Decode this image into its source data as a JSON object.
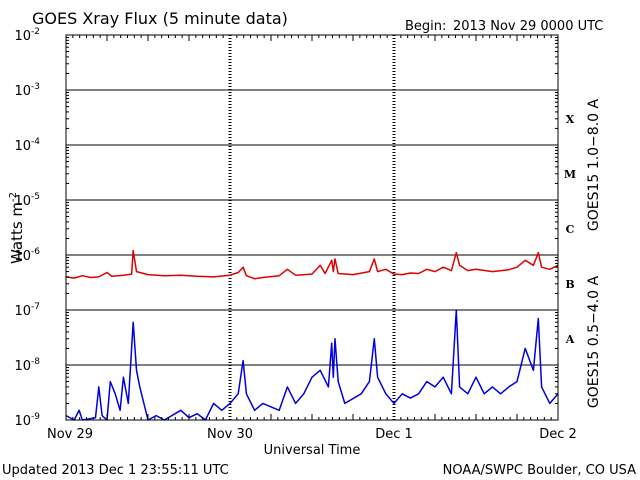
{
  "header": {
    "title": "GOES Xray Flux (5 minute data)",
    "begin_label": "Begin:",
    "begin_value": "2013 Nov 29 0000 UTC"
  },
  "footer": {
    "updated": "Updated 2013 Dec  1 23:55:11 UTC",
    "credit": "NOAA/SWPC Boulder, CO USA"
  },
  "chart_data": {
    "type": "line",
    "title": "GOES Xray Flux (5 minute data)",
    "xlabel": "Universal Time",
    "ylabel": "Watts m",
    "ylabel_sup": "-2",
    "yscale": "log",
    "ylim": [
      1e-09,
      0.01
    ],
    "xlim_days": [
      0,
      3
    ],
    "x_ticks": [
      {
        "day": 0,
        "label": "Nov 29"
      },
      {
        "day": 1,
        "label": "Nov 30"
      },
      {
        "day": 2,
        "label": "Dec 1"
      },
      {
        "day": 3,
        "label": "Dec 2"
      }
    ],
    "y_ticks": [
      {
        "base": "10",
        "exp": "-2",
        "value": 0.01
      },
      {
        "base": "10",
        "exp": "-3",
        "value": 0.001
      },
      {
        "base": "10",
        "exp": "-4",
        "value": 0.0001
      },
      {
        "base": "10",
        "exp": "-5",
        "value": 1e-05
      },
      {
        "base": "10",
        "exp": "-6",
        "value": 1e-06
      },
      {
        "base": "10",
        "exp": "-7",
        "value": 1e-07
      },
      {
        "base": "10",
        "exp": "-8",
        "value": 1e-08
      },
      {
        "base": "10",
        "exp": "-9",
        "value": 1e-09
      }
    ],
    "flare_classes": [
      {
        "label": "X",
        "value": 0.0003
      },
      {
        "label": "M",
        "value": 3e-05
      },
      {
        "label": "C",
        "value": 3e-06
      },
      {
        "label": "B",
        "value": 3e-07
      },
      {
        "label": "A",
        "value": 3e-08
      }
    ],
    "grid": true,
    "series": [
      {
        "name": "GOES15 1.0−8.0 A",
        "color": "#e00000",
        "points": [
          [
            0.0,
            4e-07
          ],
          [
            0.05,
            3.8e-07
          ],
          [
            0.1,
            4.2e-07
          ],
          [
            0.15,
            3.9e-07
          ],
          [
            0.2,
            4e-07
          ],
          [
            0.25,
            4.8e-07
          ],
          [
            0.28,
            4.1e-07
          ],
          [
            0.35,
            4.3e-07
          ],
          [
            0.4,
            4.5e-07
          ],
          [
            0.41,
            1.2e-06
          ],
          [
            0.43,
            5e-07
          ],
          [
            0.5,
            4.4e-07
          ],
          [
            0.6,
            4.2e-07
          ],
          [
            0.7,
            4.3e-07
          ],
          [
            0.8,
            4.1e-07
          ],
          [
            0.9,
            4e-07
          ],
          [
            1.0,
            4.3e-07
          ],
          [
            1.05,
            4.8e-07
          ],
          [
            1.08,
            6e-07
          ],
          [
            1.1,
            4.2e-07
          ],
          [
            1.15,
            3.7e-07
          ],
          [
            1.2,
            3.9e-07
          ],
          [
            1.3,
            4.2e-07
          ],
          [
            1.35,
            5.5e-07
          ],
          [
            1.4,
            4.3e-07
          ],
          [
            1.5,
            4.5e-07
          ],
          [
            1.55,
            6.5e-07
          ],
          [
            1.58,
            4.6e-07
          ],
          [
            1.62,
            8e-07
          ],
          [
            1.63,
            5e-07
          ],
          [
            1.64,
            8.5e-07
          ],
          [
            1.66,
            4.6e-07
          ],
          [
            1.75,
            4.4e-07
          ],
          [
            1.85,
            5e-07
          ],
          [
            1.88,
            8.5e-07
          ],
          [
            1.9,
            5e-07
          ],
          [
            1.95,
            5.5e-07
          ],
          [
            2.0,
            4.5e-07
          ],
          [
            2.05,
            4.4e-07
          ],
          [
            2.1,
            4.7e-07
          ],
          [
            2.15,
            4.6e-07
          ],
          [
            2.2,
            5.5e-07
          ],
          [
            2.25,
            5e-07
          ],
          [
            2.3,
            6e-07
          ],
          [
            2.35,
            5.2e-07
          ],
          [
            2.38,
            1.1e-06
          ],
          [
            2.4,
            6.5e-07
          ],
          [
            2.45,
            5.2e-07
          ],
          [
            2.5,
            5.5e-07
          ],
          [
            2.6,
            5e-07
          ],
          [
            2.7,
            5.4e-07
          ],
          [
            2.75,
            6e-07
          ],
          [
            2.8,
            8e-07
          ],
          [
            2.85,
            6.5e-07
          ],
          [
            2.88,
            1.1e-06
          ],
          [
            2.9,
            6e-07
          ],
          [
            2.95,
            5.5e-07
          ],
          [
            3.0,
            6.5e-07
          ]
        ]
      },
      {
        "name": "GOES15 0.5−4.0 A",
        "color": "#0000e0",
        "points": [
          [
            0.0,
            1.2e-09
          ],
          [
            0.05,
            1e-09
          ],
          [
            0.08,
            1.5e-09
          ],
          [
            0.1,
            1e-09
          ],
          [
            0.18,
            1.1e-09
          ],
          [
            0.2,
            4e-09
          ],
          [
            0.22,
            1.2e-09
          ],
          [
            0.25,
            1e-09
          ],
          [
            0.27,
            5e-09
          ],
          [
            0.3,
            3e-09
          ],
          [
            0.33,
            1.5e-09
          ],
          [
            0.35,
            6e-09
          ],
          [
            0.38,
            2e-09
          ],
          [
            0.41,
            6e-08
          ],
          [
            0.43,
            8e-09
          ],
          [
            0.45,
            4e-09
          ],
          [
            0.5,
            1e-09
          ],
          [
            0.55,
            1.2e-09
          ],
          [
            0.6,
            1e-09
          ],
          [
            0.7,
            1.5e-09
          ],
          [
            0.75,
            1.1e-09
          ],
          [
            0.8,
            1.3e-09
          ],
          [
            0.85,
            1e-09
          ],
          [
            0.9,
            2e-09
          ],
          [
            0.95,
            1.5e-09
          ],
          [
            1.0,
            2e-09
          ],
          [
            1.05,
            3e-09
          ],
          [
            1.08,
            1.2e-08
          ],
          [
            1.1,
            3e-09
          ],
          [
            1.15,
            1.5e-09
          ],
          [
            1.2,
            2e-09
          ],
          [
            1.3,
            1.5e-09
          ],
          [
            1.35,
            4e-09
          ],
          [
            1.4,
            2e-09
          ],
          [
            1.45,
            3e-09
          ],
          [
            1.5,
            6e-09
          ],
          [
            1.55,
            8e-09
          ],
          [
            1.6,
            4e-09
          ],
          [
            1.62,
            2.5e-08
          ],
          [
            1.63,
            6e-09
          ],
          [
            1.64,
            3e-08
          ],
          [
            1.66,
            5e-09
          ],
          [
            1.7,
            2e-09
          ],
          [
            1.8,
            3e-09
          ],
          [
            1.85,
            5e-09
          ],
          [
            1.88,
            3e-08
          ],
          [
            1.9,
            6e-09
          ],
          [
            1.95,
            3e-09
          ],
          [
            2.0,
            2e-09
          ],
          [
            2.05,
            3e-09
          ],
          [
            2.1,
            2.5e-09
          ],
          [
            2.15,
            3e-09
          ],
          [
            2.2,
            5e-09
          ],
          [
            2.25,
            4e-09
          ],
          [
            2.3,
            6e-09
          ],
          [
            2.35,
            3e-09
          ],
          [
            2.38,
            1e-07
          ],
          [
            2.4,
            4e-09
          ],
          [
            2.45,
            3e-09
          ],
          [
            2.5,
            6e-09
          ],
          [
            2.55,
            3e-09
          ],
          [
            2.6,
            4e-09
          ],
          [
            2.65,
            3e-09
          ],
          [
            2.7,
            4e-09
          ],
          [
            2.75,
            5e-09
          ],
          [
            2.8,
            2e-08
          ],
          [
            2.85,
            8e-09
          ],
          [
            2.88,
            7e-08
          ],
          [
            2.9,
            4e-09
          ],
          [
            2.95,
            2e-09
          ],
          [
            3.0,
            3e-09
          ]
        ]
      }
    ]
  }
}
